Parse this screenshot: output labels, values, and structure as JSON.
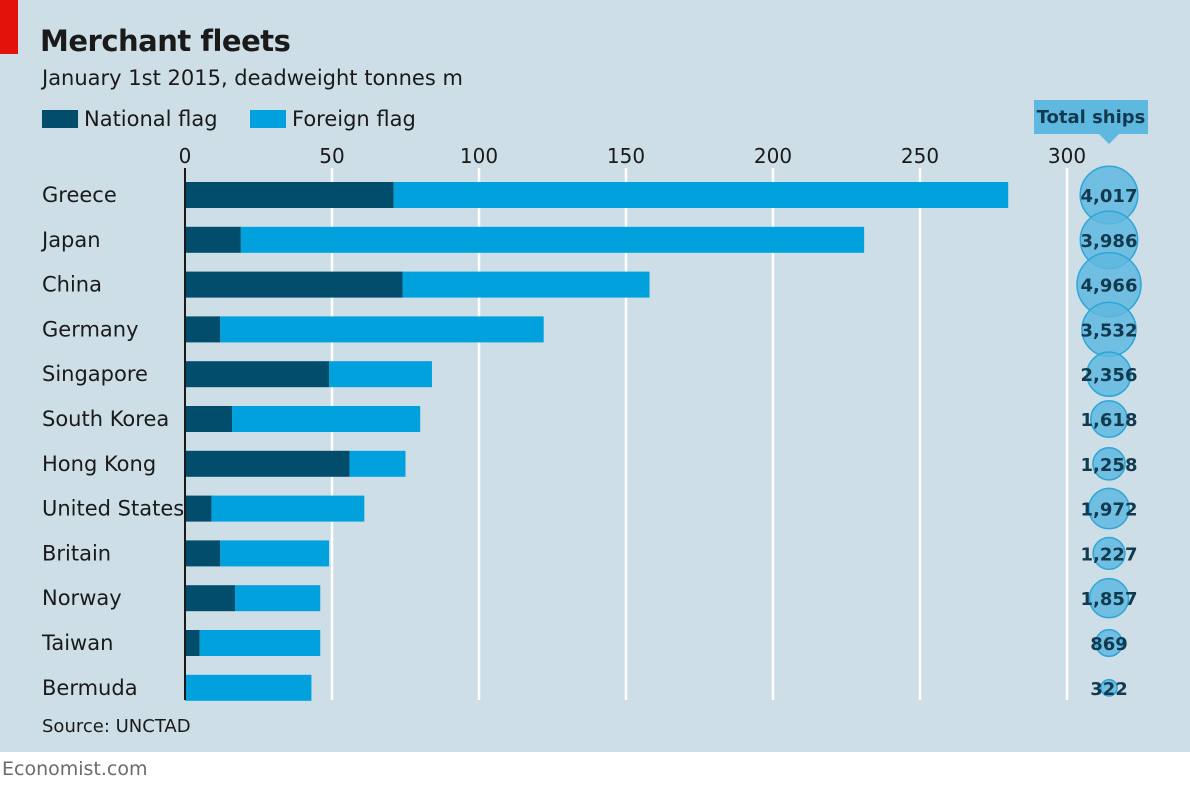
{
  "header": {
    "title": "Merchant fleets",
    "subtitle": "January 1st 2015, deadweight tonnes m"
  },
  "legend": {
    "national": "National flag",
    "foreign": "Foreign flag"
  },
  "total_ships_label": "Total ships",
  "source": "Source: UNCTAD",
  "footer": "Economist.com",
  "colors": {
    "national": "#024d6b",
    "foreign": "#00a1dd",
    "bubble": "#5fb8df",
    "background": "#cddee7",
    "brand_red": "#e3120b"
  },
  "chart_data": {
    "type": "bar",
    "orientation": "horizontal",
    "stacked": true,
    "title": "Merchant fleets",
    "subtitle": "January 1st 2015, deadweight tonnes m",
    "categories": [
      "Greece",
      "Japan",
      "China",
      "Germany",
      "Singapore",
      "South Korea",
      "Hong Kong",
      "United States",
      "Britain",
      "Norway",
      "Taiwan",
      "Bermuda"
    ],
    "series": [
      {
        "name": "National flag",
        "values": [
          71,
          19,
          74,
          12,
          49,
          16,
          56,
          9,
          12,
          17,
          5,
          0
        ]
      },
      {
        "name": "Foreign flag",
        "values": [
          209,
          212,
          84,
          110,
          35,
          64,
          19,
          52,
          37,
          29,
          41,
          43
        ]
      }
    ],
    "xlim": [
      0,
      300
    ],
    "xticks": [
      "0",
      "50",
      "100",
      "150",
      "200",
      "250",
      "300"
    ],
    "xtick_values": [
      0,
      50,
      100,
      150,
      200,
      250,
      300
    ],
    "grid": true,
    "legend_position": "top-left",
    "total_ships": {
      "label": "Total ships",
      "values": [
        4017,
        3986,
        4966,
        3532,
        2356,
        1618,
        1258,
        1972,
        1227,
        1857,
        869,
        322
      ],
      "labels": [
        "4,017",
        "3,986",
        "4,966",
        "3,532",
        "2,356",
        "1,618",
        "1,258",
        "1,972",
        "1,227",
        "1,857",
        "869",
        "322"
      ]
    }
  }
}
